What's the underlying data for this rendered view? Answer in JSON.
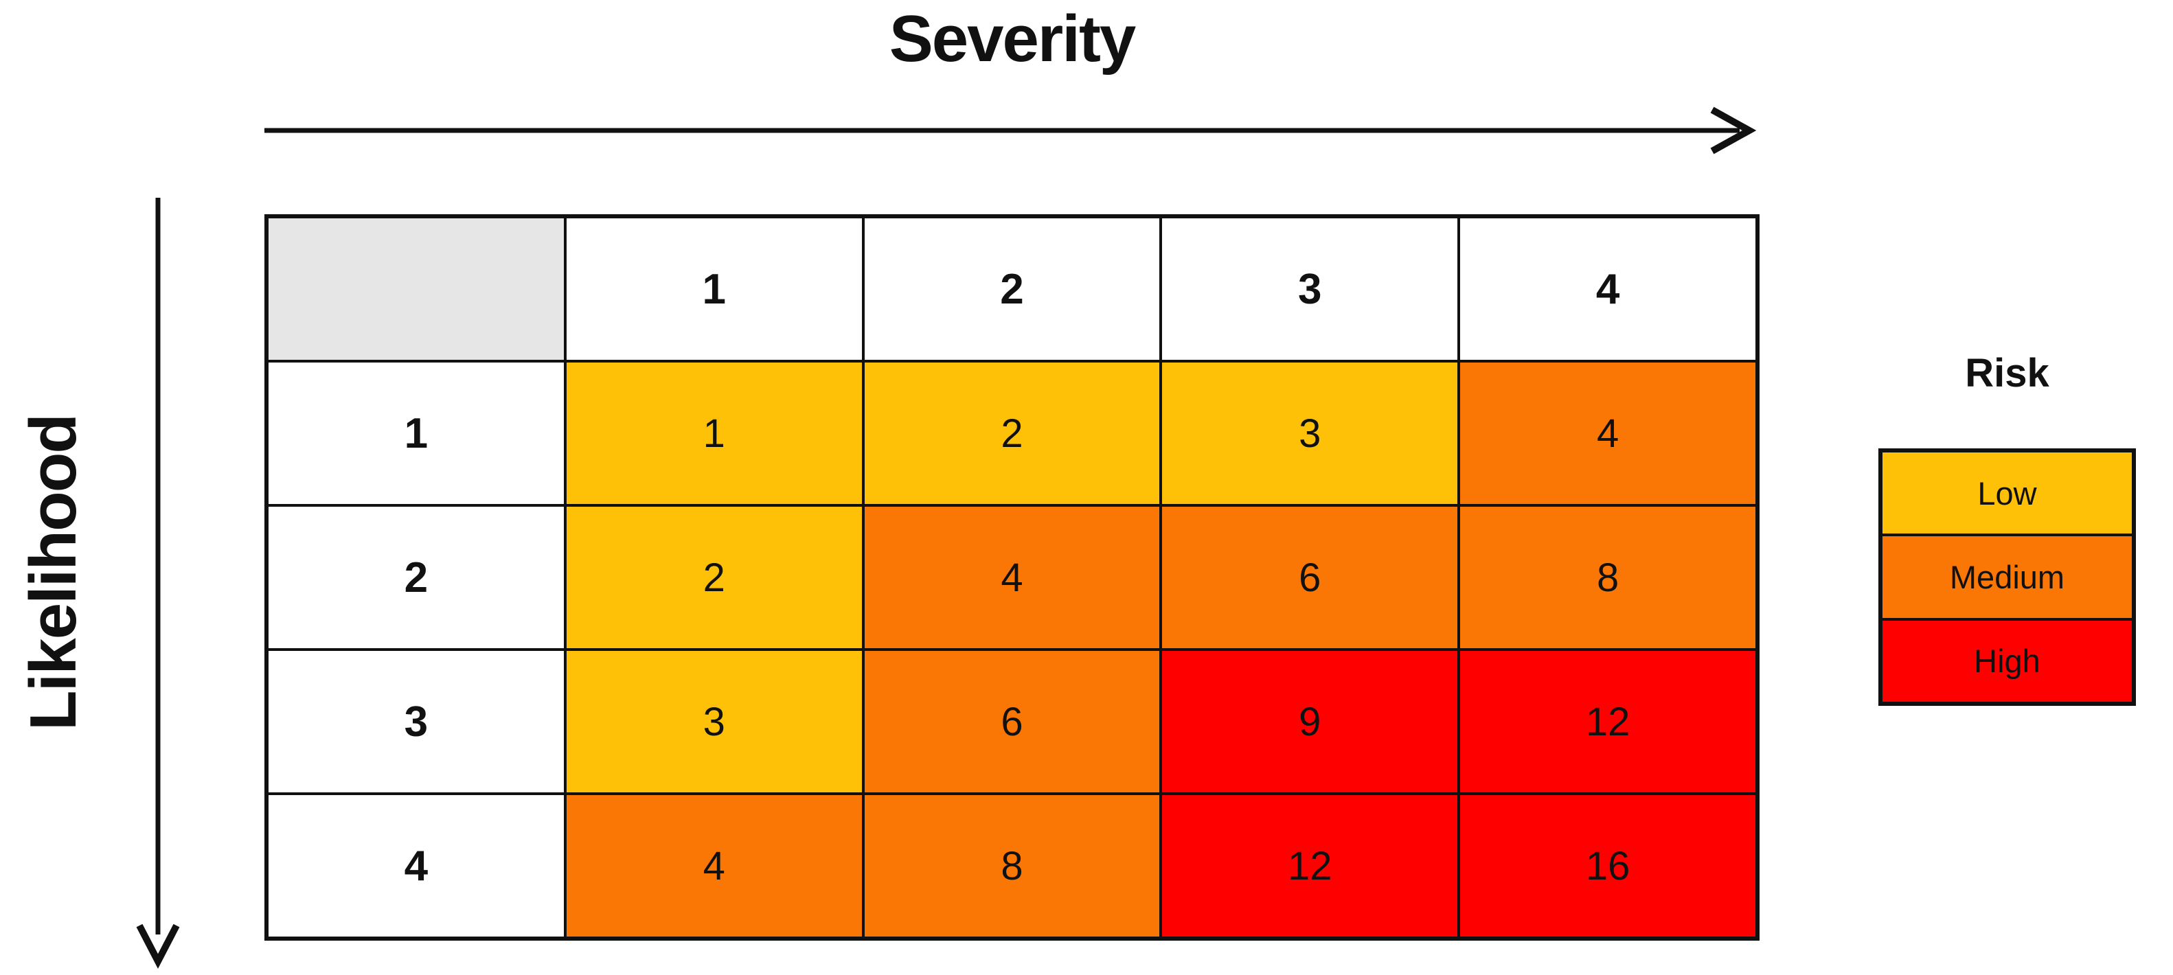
{
  "axes": {
    "x_label": "Severity",
    "y_label": "Likelihood"
  },
  "legend": {
    "title": "Risk",
    "items": [
      {
        "label": "Low",
        "level": "low"
      },
      {
        "label": "Medium",
        "level": "medium"
      },
      {
        "label": "High",
        "level": "high"
      }
    ]
  },
  "matrix": {
    "col_headers": [
      "1",
      "2",
      "3",
      "4"
    ],
    "row_headers": [
      "1",
      "2",
      "3",
      "4"
    ],
    "cells": [
      [
        {
          "value": "1",
          "level": "low"
        },
        {
          "value": "2",
          "level": "low"
        },
        {
          "value": "3",
          "level": "low"
        },
        {
          "value": "4",
          "level": "medium"
        }
      ],
      [
        {
          "value": "2",
          "level": "low"
        },
        {
          "value": "4",
          "level": "medium"
        },
        {
          "value": "6",
          "level": "medium"
        },
        {
          "value": "8",
          "level": "medium"
        }
      ],
      [
        {
          "value": "3",
          "level": "low"
        },
        {
          "value": "6",
          "level": "medium"
        },
        {
          "value": "9",
          "level": "high"
        },
        {
          "value": "12",
          "level": "high"
        }
      ],
      [
        {
          "value": "4",
          "level": "medium"
        },
        {
          "value": "8",
          "level": "medium"
        },
        {
          "value": "12",
          "level": "high"
        },
        {
          "value": "16",
          "level": "high"
        }
      ]
    ]
  },
  "colors": {
    "low": "#FFC107",
    "medium": "#FB7705",
    "high": "#FE0000",
    "header_cell_bg": "#E7E6E6",
    "grid_border": "#111111",
    "text": "#111111"
  },
  "chart_data": {
    "type": "heatmap",
    "title": "",
    "x_axis_label": "Severity",
    "y_axis_label": "Likelihood",
    "x_categories": [
      1,
      2,
      3,
      4
    ],
    "y_categories": [
      1,
      2,
      3,
      4
    ],
    "values": [
      [
        1,
        2,
        3,
        4
      ],
      [
        2,
        4,
        6,
        8
      ],
      [
        3,
        6,
        9,
        12
      ],
      [
        4,
        8,
        12,
        16
      ]
    ],
    "cell_risk_levels": [
      [
        "Low",
        "Low",
        "Low",
        "Medium"
      ],
      [
        "Low",
        "Medium",
        "Medium",
        "Medium"
      ],
      [
        "Low",
        "Medium",
        "High",
        "High"
      ],
      [
        "Medium",
        "Medium",
        "High",
        "High"
      ]
    ],
    "legend_position": "right",
    "legend": {
      "title": "Risk",
      "entries": [
        "Low",
        "Medium",
        "High"
      ]
    }
  }
}
